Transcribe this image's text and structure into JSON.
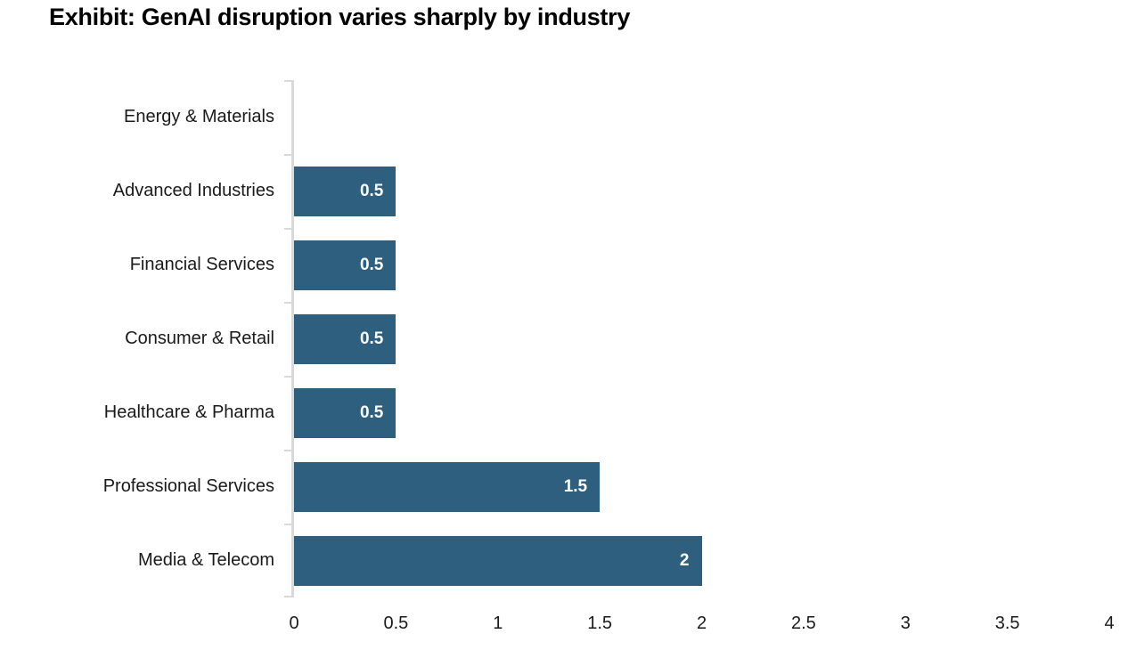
{
  "title": "Exhibit: GenAI disruption varies sharply by industry",
  "colors": {
    "bar": "#2e5f7f",
    "axis": "#d9d9d9",
    "text": "#1a1a1a",
    "title": "#000000",
    "value_label": "#ffffff",
    "background": "#ffffff"
  },
  "chart_data": {
    "type": "bar",
    "orientation": "horizontal",
    "title": "Exhibit: GenAI disruption varies sharply by industry",
    "categories": [
      "Energy & Materials",
      "Advanced Industries",
      "Financial Services",
      "Consumer & Retail",
      "Healthcare & Pharma",
      "Professional Services",
      "Media & Telecom"
    ],
    "values": [
      0,
      0.5,
      0.5,
      0.5,
      0.5,
      1.5,
      2
    ],
    "value_labels": [
      "",
      "0.5",
      "0.5",
      "0.5",
      "0.5",
      "1.5",
      "2"
    ],
    "xlabel": "",
    "ylabel": "",
    "xlim": [
      0,
      4
    ],
    "x_ticks": [
      0,
      0.5,
      1,
      1.5,
      2,
      2.5,
      3,
      3.5,
      4
    ],
    "x_tick_labels": [
      "0",
      "0.5",
      "1",
      "1.5",
      "2",
      "2.5",
      "3",
      "3.5",
      "4"
    ],
    "grid": false,
    "legend": false,
    "value_labels_inside_bars": true
  }
}
